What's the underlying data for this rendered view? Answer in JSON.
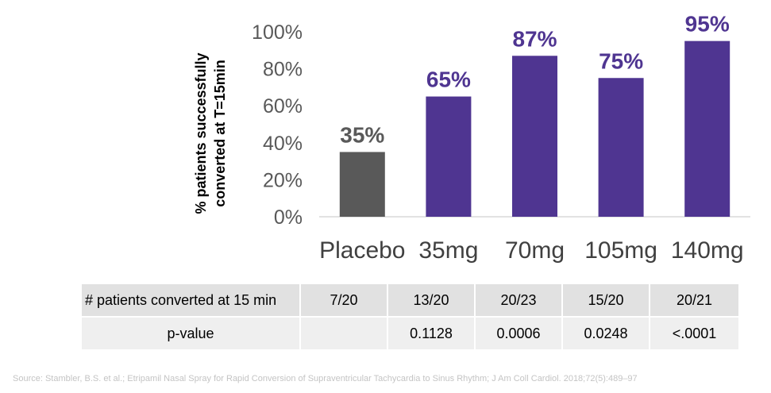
{
  "chart_data": {
    "type": "bar",
    "categories": [
      "Placebo",
      "35mg",
      "70mg",
      "105mg",
      "140mg"
    ],
    "values": [
      35,
      65,
      87,
      75,
      95
    ],
    "data_labels": [
      "35%",
      "65%",
      "87%",
      "75%",
      "95%"
    ],
    "ylabel_lines": [
      "% patients successfully",
      "converted at T=15min"
    ],
    "yticks": [
      "0%",
      "20%",
      "40%",
      "60%",
      "80%",
      "100%"
    ],
    "ylim": [
      0,
      100
    ],
    "grid": false,
    "colors": {
      "placebo": "#595959",
      "drug": "#4f3591",
      "axis": "#d9d9d9"
    }
  },
  "table": {
    "rows": [
      {
        "label": "# patients converted at 15 min",
        "cells": [
          "7/20",
          "13/20",
          "20/23",
          "15/20",
          "20/21"
        ]
      },
      {
        "label": "p-value",
        "cells": [
          "",
          "0.1128",
          "0.0006",
          "0.0248",
          "<.0001"
        ]
      }
    ]
  },
  "source": "Source: Stambler, B.S. et al.; Etripamil Nasal Spray for Rapid Conversion of Supraventricular Tachycardia to Sinus Rhythm; J Am Coll Cardiol. 2018;72(5):489–97"
}
